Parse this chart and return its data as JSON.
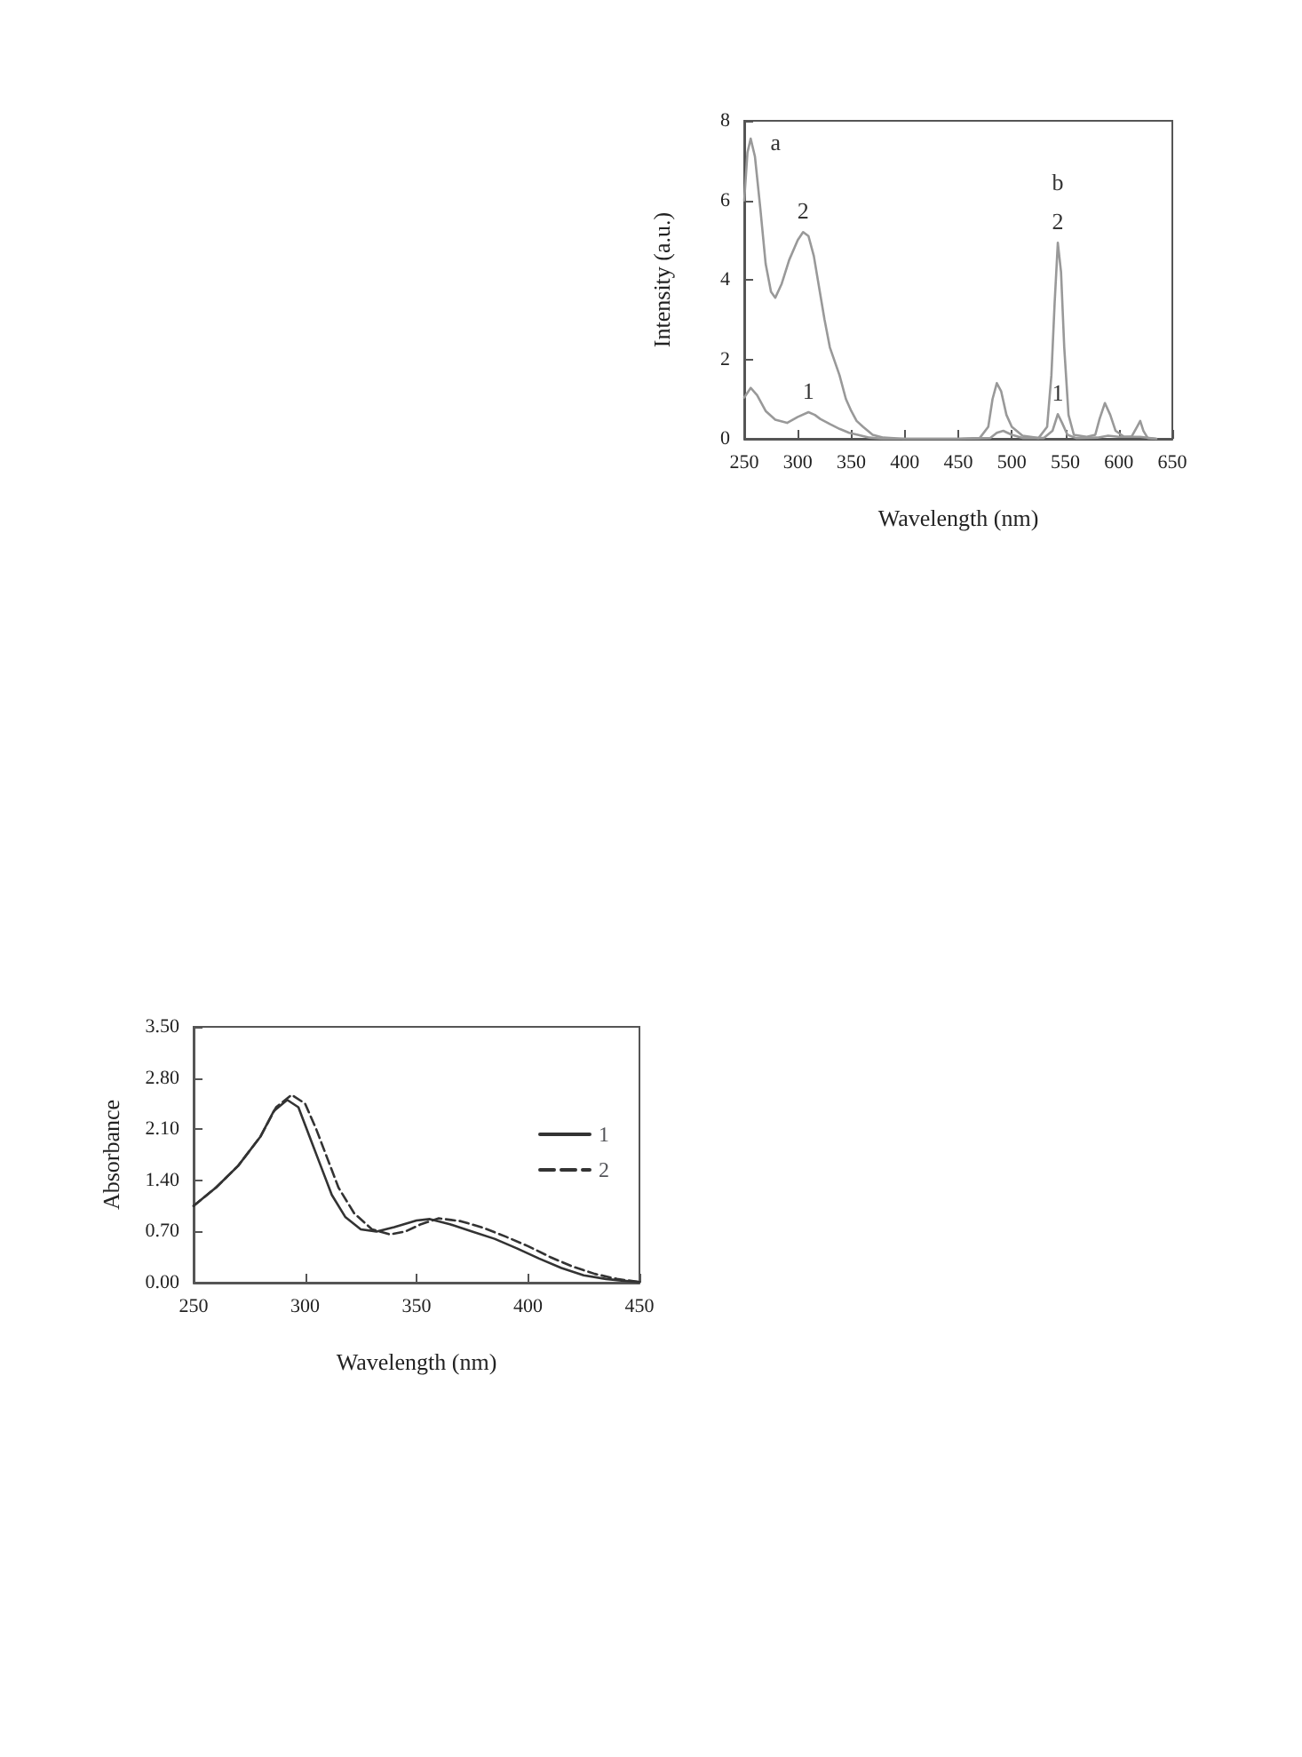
{
  "chart_data": [
    {
      "type": "line",
      "xlabel": "Wavelength (nm)",
      "ylabel": "Intensity (a.u.)",
      "xlim": [
        250,
        650
      ],
      "xticks": [
        250,
        300,
        350,
        400,
        450,
        500,
        550,
        600,
        650
      ],
      "ylim": [
        0,
        8
      ],
      "yticks": [
        0,
        2,
        4,
        6,
        8
      ],
      "grid": false,
      "legend": false,
      "marker": "none",
      "line_style": "solid",
      "series": [
        {
          "color": "#999999",
          "x": [
            250,
            253,
            256,
            260,
            265,
            270,
            275,
            279,
            285,
            292,
            300,
            305,
            310,
            315,
            320,
            325,
            330,
            339,
            345,
            350,
            355,
            361,
            370,
            380,
            400,
            450,
            470,
            478,
            482,
            486,
            490,
            495,
            500,
            510,
            525,
            533,
            537,
            540,
            543,
            546,
            549,
            553,
            558,
            570,
            578,
            582,
            587,
            592,
            597,
            605,
            612,
            617,
            620,
            623,
            627,
            635
          ],
          "values": [
            6.0,
            7.2,
            7.55,
            7.1,
            5.8,
            4.4,
            3.7,
            3.55,
            3.9,
            4.5,
            5.0,
            5.2,
            5.1,
            4.6,
            3.8,
            3.0,
            2.3,
            1.6,
            1.0,
            0.7,
            0.45,
            0.3,
            0.1,
            0.03,
            0.0,
            0.0,
            0.02,
            0.3,
            1.0,
            1.4,
            1.2,
            0.6,
            0.3,
            0.08,
            0.02,
            0.3,
            1.6,
            3.4,
            4.93,
            4.2,
            2.3,
            0.6,
            0.1,
            0.05,
            0.1,
            0.5,
            0.9,
            0.6,
            0.2,
            0.05,
            0.06,
            0.3,
            0.45,
            0.2,
            0.02,
            0.0
          ]
        },
        {
          "color": "#999999",
          "x": [
            250,
            256,
            262,
            270,
            279,
            290,
            300,
            310,
            316,
            321,
            330,
            339,
            348,
            356,
            367,
            380,
            400,
            450,
            480,
            486,
            492,
            500,
            510,
            530,
            538,
            543,
            547,
            552,
            560,
            580,
            590,
            600,
            620,
            635
          ],
          "values": [
            1.04,
            1.28,
            1.1,
            0.7,
            0.48,
            0.4,
            0.55,
            0.67,
            0.6,
            0.5,
            0.37,
            0.25,
            0.15,
            0.1,
            0.03,
            0.0,
            0.0,
            0.0,
            0.02,
            0.15,
            0.2,
            0.1,
            0.02,
            0.02,
            0.2,
            0.62,
            0.4,
            0.1,
            0.02,
            0.03,
            0.08,
            0.05,
            0.05,
            0.0
          ]
        }
      ],
      "annotations": [
        {
          "text": "a",
          "x": 256,
          "y": 7.55
        },
        {
          "text": "2",
          "x": 543,
          "y": 4.93
        },
        {
          "text": "b",
          "x": 543,
          "y": 4.93
        },
        {
          "text": "2",
          "x": 305,
          "y": 5.2
        },
        {
          "text": "1",
          "x": 310,
          "y": 0.67
        },
        {
          "text": "1",
          "x": 543,
          "y": 0.62
        }
      ]
    },
    {
      "type": "line",
      "xlabel": "Wavelength (nm)",
      "ylabel": "Absorbance",
      "xlim": [
        250,
        450
      ],
      "xticks": [
        250,
        300,
        350,
        400,
        450
      ],
      "ylim": [
        0,
        3.5
      ],
      "yticks": [
        {
          "value": 0,
          "label": "0.00"
        },
        {
          "value": 0.7,
          "label": "0.70"
        },
        {
          "value": 1.4,
          "label": "1.40"
        },
        {
          "value": 2.1,
          "label": "2.10"
        },
        {
          "value": 2.8,
          "label": "2.80"
        },
        {
          "value": 3.5,
          "label": "3.50"
        }
      ],
      "grid": false,
      "legend": "right",
      "marker": "none",
      "series": [
        {
          "name": "1",
          "color": "#333333",
          "line_style": "solid",
          "x": [
            250,
            260,
            270,
            280,
            286,
            292,
            297,
            302,
            307,
            312,
            318,
            325,
            332,
            340,
            350,
            356,
            365,
            375,
            385,
            395,
            405,
            415,
            425,
            435,
            445,
            450
          ],
          "values": [
            1.05,
            1.3,
            1.6,
            2.0,
            2.35,
            2.5,
            2.4,
            2.0,
            1.6,
            1.2,
            0.9,
            0.73,
            0.7,
            0.76,
            0.85,
            0.87,
            0.8,
            0.7,
            0.6,
            0.47,
            0.33,
            0.2,
            0.1,
            0.05,
            0.02,
            0.01
          ]
        },
        {
          "name": "2",
          "color": "#333333",
          "line_style": "dashed",
          "x": [
            250,
            260,
            270,
            280,
            287,
            294,
            300,
            305,
            310,
            315,
            322,
            330,
            338,
            345,
            352,
            360,
            370,
            380,
            390,
            400,
            410,
            420,
            430,
            440,
            450
          ],
          "values": [
            1.05,
            1.3,
            1.6,
            2.0,
            2.4,
            2.57,
            2.45,
            2.1,
            1.7,
            1.3,
            0.95,
            0.73,
            0.66,
            0.7,
            0.8,
            0.88,
            0.84,
            0.75,
            0.63,
            0.5,
            0.35,
            0.22,
            0.12,
            0.05,
            0.01
          ]
        }
      ]
    }
  ]
}
